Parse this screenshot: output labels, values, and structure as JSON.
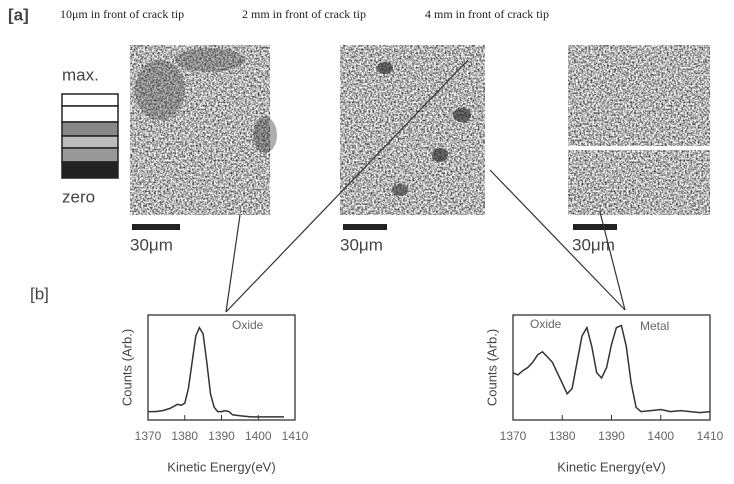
{
  "panel_a": {
    "label": "[a]",
    "captions": [
      "10μm in front of crack tip",
      "2 mm in front of crack tip",
      "4 mm in front of crack tip"
    ],
    "scale_max": "max.",
    "scale_zero": "zero",
    "scale_bars": [
      "30μm",
      "30μm",
      "30μm"
    ]
  },
  "panel_b": {
    "label": "[b]"
  },
  "chart_data": [
    {
      "type": "line",
      "xlabel": "Kinetic Energy(eV)",
      "ylabel": "Counts (Arb.)",
      "color": "#333",
      "annotations": [
        "Oxide"
      ],
      "x": [
        1370,
        1372,
        1374,
        1376,
        1378,
        1379,
        1380,
        1381,
        1382,
        1383,
        1384,
        1385,
        1386,
        1387,
        1388,
        1389,
        1390,
        1391,
        1392,
        1393,
        1395,
        1398,
        1401,
        1404,
        1407
      ],
      "values": [
        8,
        8,
        9,
        11,
        15,
        14,
        16,
        30,
        55,
        80,
        88,
        82,
        55,
        25,
        12,
        8,
        8,
        9,
        8,
        5,
        4,
        3,
        3,
        3,
        3
      ],
      "xlim": [
        1370,
        1410
      ],
      "xticks": [
        1370,
        1380,
        1390,
        1400,
        1410
      ],
      "ylim": [
        0,
        100
      ]
    },
    {
      "type": "line",
      "xlabel": "Kinetic Energy(eV)",
      "ylabel": "Counts (Arb.)",
      "color": "#333",
      "annotations": [
        "Oxide",
        "Metal"
      ],
      "x": [
        1370,
        1371,
        1372,
        1373,
        1374,
        1375,
        1376,
        1377,
        1378,
        1379,
        1380,
        1381,
        1382,
        1383,
        1384,
        1385,
        1386,
        1387,
        1388,
        1389,
        1390,
        1391,
        1392,
        1393,
        1394,
        1395,
        1396,
        1398,
        1400,
        1402,
        1404,
        1406,
        1408,
        1410
      ],
      "values": [
        45,
        43,
        47,
        50,
        55,
        62,
        65,
        60,
        55,
        45,
        35,
        25,
        30,
        55,
        80,
        88,
        70,
        45,
        40,
        50,
        72,
        88,
        90,
        70,
        35,
        12,
        8,
        9,
        10,
        8,
        9,
        8,
        7,
        8
      ],
      "xlim": [
        1370,
        1410
      ],
      "xticks": [
        1370,
        1380,
        1390,
        1400,
        1410
      ],
      "ylim": [
        0,
        100
      ]
    }
  ]
}
